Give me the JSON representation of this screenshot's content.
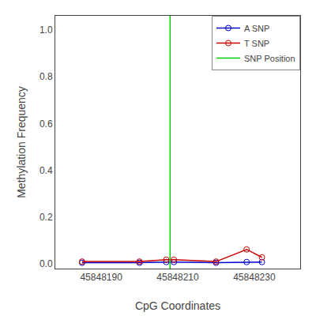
{
  "chart_data": {
    "type": "line",
    "xlabel": "CpG Coordinates",
    "ylabel": "Methylation Frequency",
    "x": [
      45848185,
      45848200,
      45848207,
      45848209,
      45848220,
      45848228,
      45848232
    ],
    "series": [
      {
        "name": "A SNP",
        "color": "#0000cc",
        "marker": "open circle",
        "values": [
          0.005,
          0.005,
          0.008,
          0.008,
          0.005,
          0.008,
          0.008
        ]
      },
      {
        "name": "T SNP",
        "color": "#cc0000",
        "marker": "open circle",
        "values": [
          0.01,
          0.01,
          0.018,
          0.018,
          0.01,
          0.062,
          0.028
        ]
      },
      {
        "name": "SNP Position",
        "type": "vline",
        "color": "#00cc00",
        "x": 45848208
      }
    ],
    "xlim": [
      45848178,
      45848242
    ],
    "xticks": [
      45848190,
      45848210,
      45848230
    ],
    "ylim": [
      -0.02,
      1.06
    ],
    "yticks": [
      {
        "value": 0.0,
        "label": "0.0"
      },
      0.2,
      0.4,
      0.6,
      0.8,
      {
        "value": 1.0,
        "label": "1.0"
      }
    ],
    "grid": false,
    "legend": "upper right"
  }
}
